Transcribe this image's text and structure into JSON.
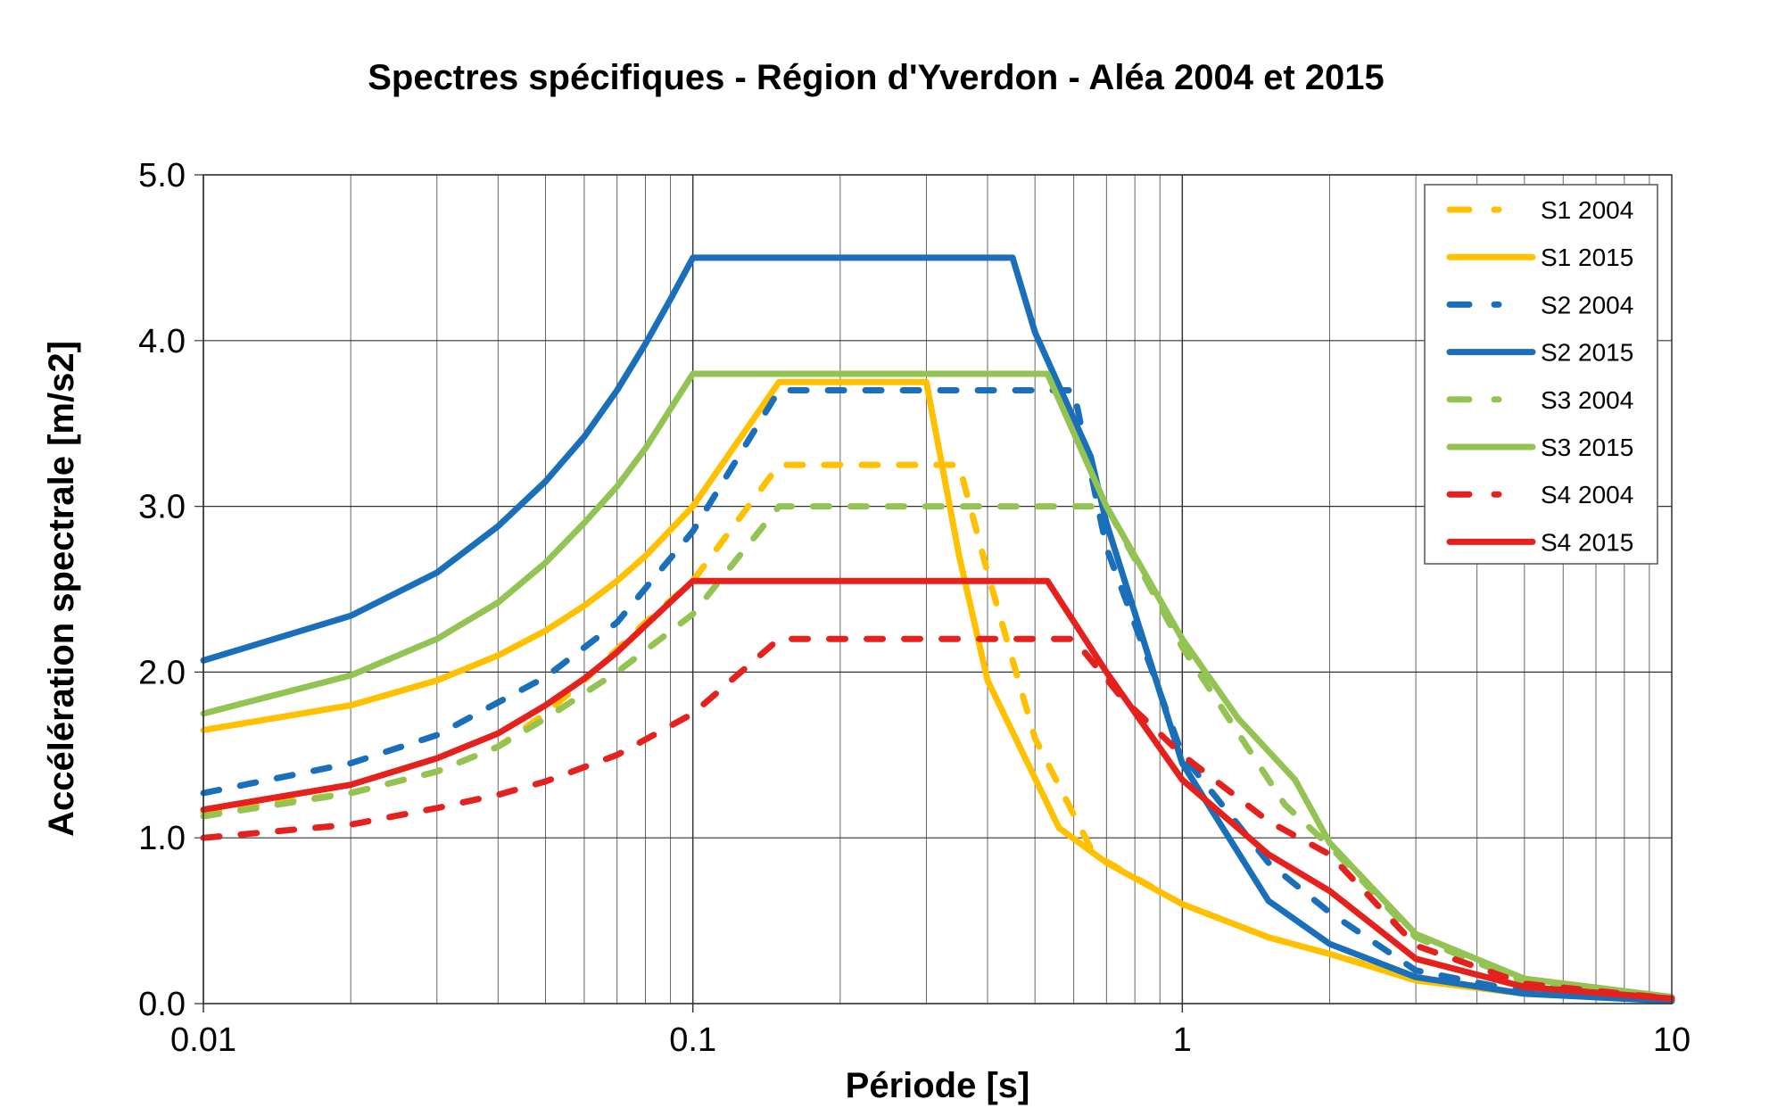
{
  "chart_data": {
    "type": "line",
    "title": "Spectres spécifiques - Région d'Yverdon - Aléa 2004 et 2015",
    "xlabel": "Période [s]",
    "ylabel": "Accélération spectrale [m/s2]",
    "xscale": "log",
    "xlim": [
      0.01,
      10
    ],
    "ylim": [
      0,
      5
    ],
    "xticks": [
      "0.01",
      "0.1",
      "1",
      "10"
    ],
    "yticks": [
      "0.0",
      "1.0",
      "2.0",
      "3.0",
      "4.0",
      "5.0"
    ],
    "grid": true,
    "legend_position": "top-right",
    "series": [
      {
        "name": "S1 2004",
        "color": "#FFC000",
        "dash": true,
        "x": [
          0.01,
          0.02,
          0.03,
          0.04,
          0.05,
          0.06,
          0.08,
          0.1,
          0.15,
          0.35,
          0.4,
          0.5,
          0.66,
          1,
          1.5,
          2,
          3,
          5,
          10
        ],
        "y": [
          1.15,
          1.27,
          1.4,
          1.55,
          1.75,
          1.95,
          2.3,
          2.55,
          3.25,
          3.25,
          2.6,
          1.6,
          0.9,
          0.6,
          0.4,
          0.3,
          0.15,
          0.06,
          0.02
        ]
      },
      {
        "name": "S1 2015",
        "color": "#FFC000",
        "dash": false,
        "x": [
          0.01,
          0.02,
          0.03,
          0.04,
          0.05,
          0.06,
          0.07,
          0.08,
          0.1,
          0.15,
          0.3,
          0.35,
          0.4,
          0.56,
          0.7,
          1,
          1.5,
          2,
          3,
          5,
          10
        ],
        "y": [
          1.65,
          1.8,
          1.95,
          2.1,
          2.25,
          2.4,
          2.55,
          2.7,
          3.0,
          3.75,
          3.75,
          2.7,
          1.95,
          1.06,
          0.85,
          0.6,
          0.4,
          0.3,
          0.14,
          0.06,
          0.02
        ]
      },
      {
        "name": "S2 2004",
        "color": "#1A6FBB",
        "dash": true,
        "x": [
          0.01,
          0.02,
          0.03,
          0.05,
          0.07,
          0.1,
          0.15,
          0.6,
          0.7,
          0.87,
          1,
          1.5,
          2,
          3,
          5,
          10
        ],
        "y": [
          1.27,
          1.45,
          1.62,
          1.97,
          2.3,
          2.85,
          3.7,
          3.7,
          2.75,
          2.0,
          1.5,
          0.85,
          0.55,
          0.2,
          0.07,
          0.02
        ]
      },
      {
        "name": "S2 2015",
        "color": "#1A6FBB",
        "dash": false,
        "x": [
          0.01,
          0.02,
          0.03,
          0.04,
          0.05,
          0.06,
          0.07,
          0.08,
          0.09,
          0.1,
          0.45,
          0.5,
          0.65,
          0.7,
          1,
          1.5,
          2,
          3,
          5,
          10
        ],
        "y": [
          2.07,
          2.34,
          2.6,
          2.88,
          3.15,
          3.42,
          3.7,
          3.98,
          4.25,
          4.5,
          4.5,
          4.05,
          3.3,
          2.9,
          1.45,
          0.62,
          0.36,
          0.16,
          0.06,
          0.015
        ]
      },
      {
        "name": "S3 2004",
        "color": "#92C353",
        "dash": true,
        "x": [
          0.01,
          0.02,
          0.03,
          0.04,
          0.05,
          0.07,
          0.1,
          0.15,
          0.7,
          1,
          1.62,
          2,
          3,
          5,
          10
        ],
        "y": [
          1.13,
          1.27,
          1.4,
          1.55,
          1.72,
          2.0,
          2.35,
          3.0,
          3.0,
          2.15,
          1.2,
          0.95,
          0.4,
          0.13,
          0.03
        ]
      },
      {
        "name": "S3 2015",
        "color": "#92C353",
        "dash": false,
        "x": [
          0.01,
          0.02,
          0.03,
          0.04,
          0.05,
          0.06,
          0.07,
          0.08,
          0.1,
          0.53,
          0.7,
          1,
          1.3,
          1.7,
          2,
          3,
          5,
          10
        ],
        "y": [
          1.75,
          1.98,
          2.2,
          2.42,
          2.66,
          2.9,
          3.12,
          3.35,
          3.8,
          3.8,
          3.0,
          2.2,
          1.72,
          1.35,
          0.97,
          0.42,
          0.15,
          0.04
        ]
      },
      {
        "name": "S4 2004",
        "color": "#E5211D",
        "dash": true,
        "x": [
          0.01,
          0.02,
          0.03,
          0.04,
          0.05,
          0.07,
          0.1,
          0.15,
          0.6,
          0.75,
          1,
          1.5,
          2,
          3,
          5,
          10
        ],
        "y": [
          1.0,
          1.08,
          1.18,
          1.26,
          1.34,
          1.5,
          1.75,
          2.2,
          2.2,
          1.85,
          1.5,
          1.1,
          0.9,
          0.35,
          0.12,
          0.03
        ]
      },
      {
        "name": "S4 2015",
        "color": "#E5211D",
        "dash": false,
        "x": [
          0.01,
          0.02,
          0.03,
          0.04,
          0.05,
          0.06,
          0.07,
          0.1,
          0.53,
          0.7,
          1,
          1.5,
          2,
          3,
          5,
          10
        ],
        "y": [
          1.17,
          1.32,
          1.48,
          1.63,
          1.8,
          1.96,
          2.12,
          2.55,
          2.55,
          2.0,
          1.35,
          0.9,
          0.68,
          0.27,
          0.1,
          0.03
        ]
      }
    ]
  }
}
